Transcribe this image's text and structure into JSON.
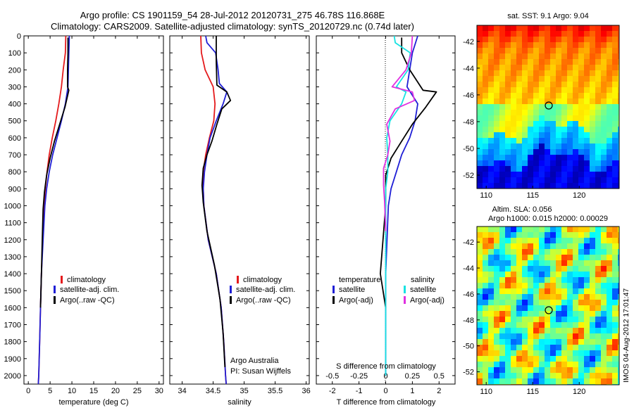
{
  "header": {
    "title_line1": "Argo profile: CS 1901159_54 28-Jul-2012 20120731_275 46.78S 116.868E",
    "title_line2": "Climatology: CARS2009. Satellite-adjusted climatology: synTS_20120729.nc (0.74d later)"
  },
  "colors": {
    "climatology": "#e41a1c",
    "satellite": "#1f1fd6",
    "argo": "#000000",
    "salinity_satellite": "#18e2e2",
    "salinity_argo": "#e030e0"
  },
  "depth_ticks": [
    "0",
    "100",
    "200",
    "300",
    "400",
    "500",
    "600",
    "700",
    "800",
    "900",
    "1000",
    "1100",
    "1200",
    "1300",
    "1400",
    "1500",
    "1600",
    "1700",
    "1800",
    "1900",
    "2000"
  ],
  "panels": {
    "temperature": {
      "xlabel": "temperature (deg C)",
      "xticks": [
        "0",
        "5",
        "10",
        "15",
        "20",
        "25",
        "30"
      ],
      "legend": [
        "climatology",
        "satellite-adj. clim.",
        "Argo(..raw -QC)"
      ]
    },
    "salinity": {
      "xlabel": "salinity",
      "xticks": [
        "34",
        "34.5",
        "35",
        "35.5",
        "36"
      ],
      "legend": [
        "climatology",
        "satellite-adj. clim.",
        "Argo(..raw -QC)"
      ],
      "note_line1": "Argo Australia",
      "note_line2": "PI: Susan Wijffels"
    },
    "difference": {
      "xlabel": "T difference from climatology",
      "top_label": "S difference from climatology",
      "s_ticks": [
        "-0.5",
        "-0.25",
        "0",
        "0.25",
        "0.5"
      ],
      "t_ticks": [
        "-2",
        "-1",
        "0",
        "1",
        "2"
      ],
      "legend_temp_title": "temperature",
      "legend_temp": [
        "satellite",
        "Argo(-adj)"
      ],
      "legend_sal_title": "salinity",
      "legend_sal": [
        "satellite",
        "Argo(-adj)"
      ]
    }
  },
  "maps": {
    "sst": {
      "title": "sat. SST: 9.1 Argo: 9.04",
      "yticks": [
        "-42",
        "-44",
        "-46",
        "-48",
        "-50",
        "-52"
      ],
      "xticks": [
        "110",
        "115",
        "120"
      ]
    },
    "sla": {
      "title_line1": "Altim. SLA: 0.056",
      "title_line2": "Argo h1000: 0.015 h2000: 0.00029",
      "yticks": [
        "-42",
        "-44",
        "-46",
        "-48",
        "-50",
        "-52"
      ],
      "xticks": [
        "110",
        "115",
        "120"
      ]
    }
  },
  "side_stamp": "IMOS 04-Aug-2012 17:01:47",
  "chart_data": [
    {
      "type": "line",
      "panel": "temperature",
      "xlabel": "temperature (deg C)",
      "ylabel": "",
      "xlim": [
        -1,
        31
      ],
      "ylim": [
        2050,
        0
      ],
      "series": [
        {
          "name": "climatology",
          "color": "#e41a1c",
          "points": [
            [
              8.6,
              0
            ],
            [
              8.5,
              100
            ],
            [
              8.0,
              200
            ],
            [
              7.6,
              300
            ],
            [
              7.0,
              400
            ],
            [
              6.3,
              500
            ],
            [
              5.5,
              600
            ],
            [
              4.8,
              700
            ],
            [
              4.3,
              800
            ],
            [
              3.9,
              900
            ],
            [
              3.6,
              1000
            ],
            [
              3.3,
              1200
            ],
            [
              3.0,
              1400
            ],
            [
              2.8,
              1600
            ],
            [
              2.6,
              1800
            ],
            [
              2.4,
              2000
            ],
            [
              2.3,
              2050
            ]
          ]
        },
        {
          "name": "satellite-adj. clim.",
          "color": "#1f1fd6",
          "points": [
            [
              9.4,
              0
            ],
            [
              9.3,
              100
            ],
            [
              9.2,
              200
            ],
            [
              9.1,
              300
            ],
            [
              8.5,
              400
            ],
            [
              7.6,
              500
            ],
            [
              6.6,
              600
            ],
            [
              5.6,
              700
            ],
            [
              4.8,
              800
            ],
            [
              4.2,
              900
            ],
            [
              3.8,
              1000
            ],
            [
              3.4,
              1200
            ],
            [
              3.0,
              1400
            ],
            [
              2.8,
              1600
            ],
            [
              2.6,
              1800
            ],
            [
              2.4,
              2000
            ],
            [
              2.3,
              2050
            ]
          ]
        },
        {
          "name": "Argo(..raw -QC)",
          "color": "#000000",
          "points": [
            [
              9.1,
              10
            ],
            [
              9.1,
              100
            ],
            [
              9.0,
              200
            ],
            [
              9.0,
              300
            ],
            [
              9.3,
              320
            ],
            [
              8.4,
              420
            ],
            [
              7.2,
              520
            ],
            [
              6.0,
              620
            ],
            [
              5.0,
              720
            ],
            [
              4.2,
              820
            ],
            [
              3.7,
              920
            ],
            [
              3.4,
              1020
            ],
            [
              3.2,
              1200
            ],
            [
              3.0,
              1400
            ],
            [
              2.8,
              1600
            ]
          ]
        }
      ]
    },
    {
      "type": "line",
      "panel": "salinity",
      "xlabel": "salinity",
      "ylabel": "",
      "xlim": [
        33.8,
        36.05
      ],
      "ylim": [
        2050,
        0
      ],
      "series": [
        {
          "name": "climatology",
          "color": "#e41a1c",
          "points": [
            [
              34.3,
              0
            ],
            [
              34.31,
              100
            ],
            [
              34.37,
              200
            ],
            [
              34.5,
              300
            ],
            [
              34.53,
              400
            ],
            [
              34.51,
              500
            ],
            [
              34.44,
              600
            ],
            [
              34.38,
              700
            ],
            [
              34.34,
              800
            ],
            [
              34.34,
              900
            ],
            [
              34.35,
              1000
            ],
            [
              34.42,
              1200
            ],
            [
              34.55,
              1400
            ],
            [
              34.63,
              1600
            ],
            [
              34.67,
              1800
            ],
            [
              34.7,
              2000
            ],
            [
              34.71,
              2050
            ]
          ]
        },
        {
          "name": "satellite-adj. clim.",
          "color": "#1f1fd6",
          "points": [
            [
              34.38,
              0
            ],
            [
              34.4,
              40
            ],
            [
              34.54,
              100
            ],
            [
              34.58,
              200
            ],
            [
              34.6,
              280
            ],
            [
              34.72,
              330
            ],
            [
              34.66,
              400
            ],
            [
              34.55,
              500
            ],
            [
              34.45,
              600
            ],
            [
              34.4,
              700
            ],
            [
              34.36,
              800
            ],
            [
              34.34,
              900
            ],
            [
              34.35,
              1000
            ],
            [
              34.42,
              1200
            ],
            [
              34.55,
              1400
            ],
            [
              34.63,
              1600
            ],
            [
              34.67,
              1800
            ],
            [
              34.7,
              2000
            ],
            [
              34.71,
              2050
            ]
          ]
        },
        {
          "name": "Argo(..raw -QC)",
          "color": "#000000",
          "points": [
            [
              34.55,
              0
            ],
            [
              34.55,
              150
            ],
            [
              34.56,
              290
            ],
            [
              34.72,
              330
            ],
            [
              34.78,
              380
            ],
            [
              34.64,
              430
            ],
            [
              34.56,
              520
            ],
            [
              34.48,
              620
            ],
            [
              34.4,
              700
            ],
            [
              34.34,
              780
            ],
            [
              34.32,
              880
            ],
            [
              34.34,
              980
            ],
            [
              34.4,
              1150
            ],
            [
              34.52,
              1350
            ],
            [
              34.61,
              1550
            ],
            [
              34.66,
              1750
            ],
            [
              34.69,
              1950
            ]
          ]
        }
      ]
    },
    {
      "type": "line",
      "panel": "difference",
      "xlabel": "T difference from climatology",
      "ylabel": "",
      "xlim": [
        -2.6,
        2.6
      ],
      "ylim": [
        2050,
        0
      ],
      "series": [
        {
          "name": "temperature satellite",
          "color": "#1f1fd6",
          "points": [
            [
              1.2,
              0
            ],
            [
              1.0,
              100
            ],
            [
              0.9,
              200
            ],
            [
              0.8,
              300
            ],
            [
              1.2,
              400
            ],
            [
              1.1,
              500
            ],
            [
              0.9,
              600
            ],
            [
              0.6,
              700
            ],
            [
              0.4,
              800
            ],
            [
              0.2,
              900
            ],
            [
              0.1,
              1000
            ],
            [
              0.05,
              1200
            ],
            [
              0.0,
              1400
            ],
            [
              0.0,
              2000
            ]
          ]
        },
        {
          "name": "temperature Argo(-adj)",
          "color": "#000000",
          "points": [
            [
              0.6,
              10
            ],
            [
              0.6,
              100
            ],
            [
              0.9,
              200
            ],
            [
              1.4,
              320
            ],
            [
              1.9,
              330
            ],
            [
              1.5,
              420
            ],
            [
              1.0,
              520
            ],
            [
              0.6,
              620
            ],
            [
              0.2,
              720
            ],
            [
              0.0,
              820
            ],
            [
              0.0,
              1000
            ],
            [
              -0.1,
              1200
            ],
            [
              -0.2,
              1400
            ],
            [
              0.0,
              1600
            ]
          ]
        },
        {
          "name": "salinity satellite",
          "color": "#18e2e2",
          "points": [
            [
              0.08,
              0
            ],
            [
              0.09,
              40
            ],
            [
              0.23,
              100
            ],
            [
              0.21,
              200
            ],
            [
              0.1,
              300
            ],
            [
              0.19,
              330
            ],
            [
              0.15,
              400
            ],
            [
              0.04,
              500
            ],
            [
              0.01,
              600
            ],
            [
              0.02,
              700
            ],
            [
              0.02,
              800
            ],
            [
              0.0,
              900
            ],
            [
              0.0,
              1000
            ],
            [
              0.0,
              2000
            ]
          ]
        },
        {
          "name": "salinity Argo(-adj)",
          "color": "#e030e0",
          "points": [
            [
              0.25,
              0
            ],
            [
              0.24,
              100
            ],
            [
              0.19,
              200
            ],
            [
              0.06,
              300
            ],
            [
              0.25,
              330
            ],
            [
              0.27,
              380
            ],
            [
              0.09,
              430
            ],
            [
              0.01,
              520
            ],
            [
              0.04,
              620
            ],
            [
              0.02,
              700
            ],
            [
              -0.02,
              780
            ],
            [
              -0.02,
              880
            ],
            [
              -0.01,
              980
            ],
            [
              0.0,
              1150
            ]
          ]
        }
      ]
    },
    {
      "type": "heatmap",
      "panel": "sst",
      "title": "sat. SST: 9.1 Argo: 9.04",
      "xlim": [
        109,
        124.3
      ],
      "ylim": [
        -53,
        -40.8
      ],
      "marker": [
        116.868,
        -46.78
      ]
    },
    {
      "type": "heatmap",
      "panel": "sla",
      "title": "Altim. SLA: 0.056",
      "xlim": [
        109,
        124.3
      ],
      "ylim": [
        -53,
        -40.8
      ],
      "marker": [
        116.868,
        -46.78
      ]
    }
  ]
}
